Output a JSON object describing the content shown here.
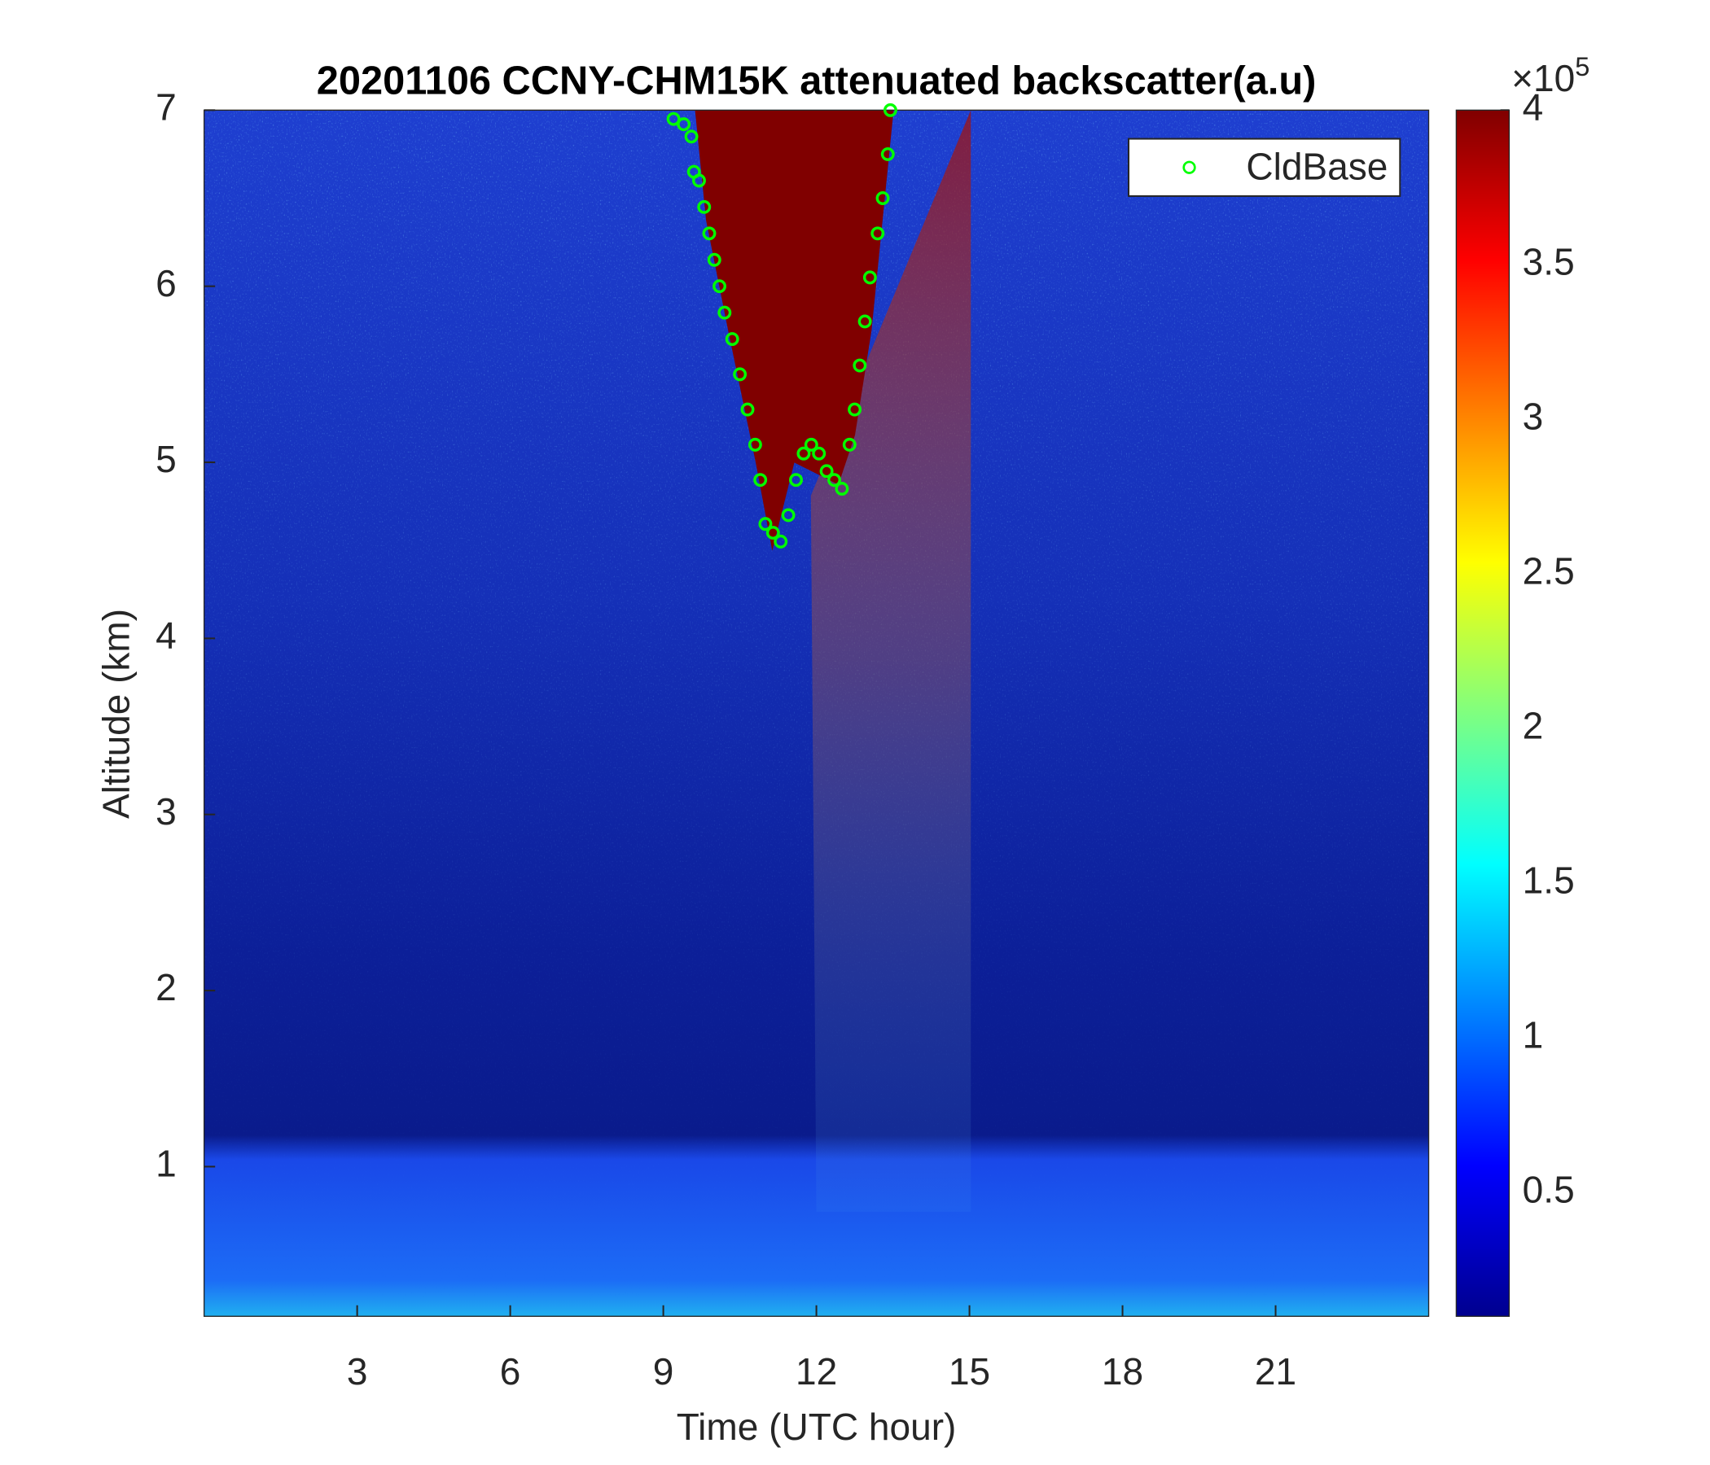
{
  "chart_data": {
    "type": "scatter",
    "title": "20201106 CCNY-CHM15K attenuated backscatter(a.u)",
    "xlabel": "Time (UTC hour)",
    "ylabel": "Altitude (km)",
    "xlim": [
      0,
      24
    ],
    "xticks": [
      3,
      6,
      9,
      12,
      15,
      18,
      21
    ],
    "ylim": [
      0.15,
      7
    ],
    "yticks": [
      1,
      2,
      3,
      4,
      5,
      6,
      7
    ],
    "colormap": "jet",
    "clim": [
      0.1,
      4
    ],
    "colorbar_ticks": [
      0.5,
      1,
      1.5,
      2,
      2.5,
      3,
      3.5,
      4
    ],
    "colorbar_multiplier": "×10",
    "colorbar_exponent": "5",
    "legend": "northeast",
    "series": [
      {
        "name": "CldBase",
        "color": "#00ff00",
        "x": [
          9.2,
          9.4,
          9.55,
          9.6,
          9.7,
          9.8,
          9.9,
          10.0,
          10.1,
          10.2,
          10.35,
          10.5,
          10.65,
          10.8,
          10.9,
          11.0,
          11.15,
          11.3,
          11.45,
          11.6,
          11.75,
          11.9,
          12.05,
          12.2,
          12.35,
          12.5,
          12.65,
          12.75,
          12.85,
          12.95,
          13.05,
          13.2,
          13.3,
          13.4,
          13.45
        ],
        "y": [
          6.95,
          6.92,
          6.85,
          6.65,
          6.6,
          6.45,
          6.3,
          6.15,
          6.0,
          5.85,
          5.7,
          5.5,
          5.3,
          5.1,
          4.9,
          4.65,
          4.6,
          4.55,
          4.7,
          4.9,
          5.05,
          5.1,
          5.05,
          4.95,
          4.9,
          4.85,
          5.1,
          5.3,
          5.55,
          5.8,
          6.05,
          6.3,
          6.5,
          6.75,
          7.0
        ]
      }
    ]
  }
}
